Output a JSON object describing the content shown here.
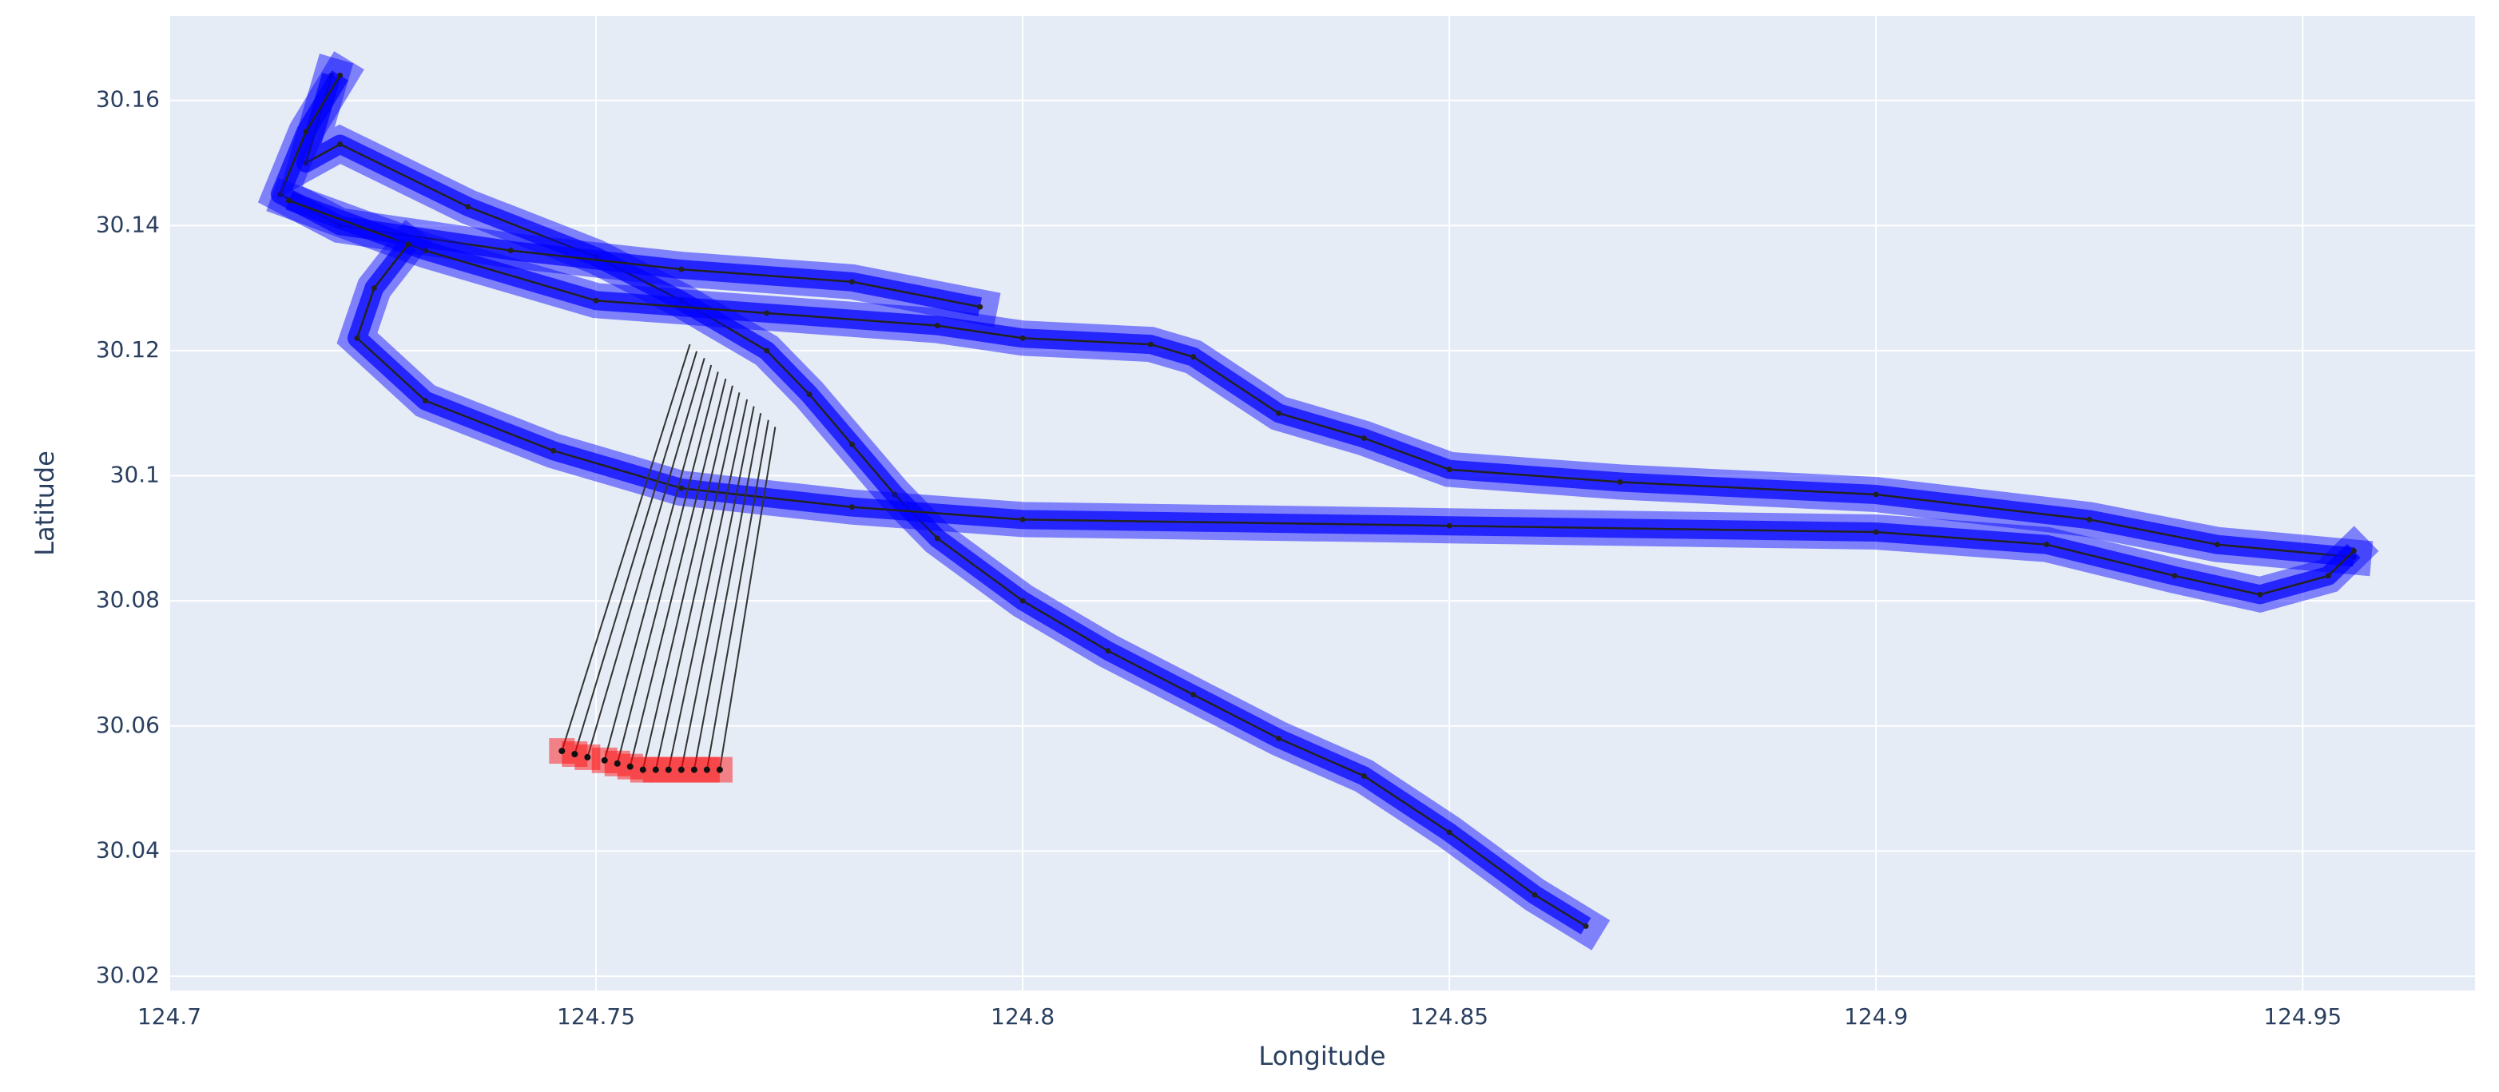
{
  "chart_data": {
    "type": "track",
    "xlabel": "Longitude",
    "ylabel": "Latitude",
    "xlim": [
      124.7,
      124.9702
    ],
    "ylim": [
      30.0177,
      30.1735
    ],
    "xticks": [
      124.7,
      124.75,
      124.8,
      124.85,
      124.9,
      124.95
    ],
    "yticks": [
      30.02,
      30.04,
      30.06,
      30.08,
      30.1,
      30.12,
      30.14,
      30.16
    ],
    "grid": true,
    "series": [
      {
        "kind": "track",
        "color": "#222222",
        "band_color": "#0000ff",
        "x": [
          124.719,
          124.716,
          124.72,
          124.735,
          124.75,
          124.76,
          124.77,
          124.775,
          124.78,
          124.785,
          124.79,
          124.8,
          124.81,
          124.82,
          124.83,
          124.84,
          124.85,
          124.86,
          124.866
        ],
        "y": [
          30.164,
          30.15,
          30.153,
          30.143,
          30.135,
          30.128,
          30.12,
          30.113,
          30.105,
          30.097,
          30.09,
          30.08,
          30.072,
          30.065,
          30.058,
          30.052,
          30.043,
          30.033,
          30.028
        ]
      },
      {
        "kind": "track",
        "color": "#222222",
        "band_color": "#0000ff",
        "x": [
          124.72,
          124.716,
          124.713,
          124.72,
          124.74,
          124.76,
          124.78,
          124.795
        ],
        "y": [
          30.164,
          30.155,
          30.145,
          30.14,
          30.136,
          30.133,
          30.131,
          30.127
        ]
      },
      {
        "kind": "track",
        "color": "#222222",
        "band_color": "#0000ff",
        "x": [
          124.714,
          124.73,
          124.75,
          124.77,
          124.79,
          124.8,
          124.815,
          124.82,
          124.83,
          124.84,
          124.85,
          124.87,
          124.9,
          124.925,
          124.94,
          124.956
        ],
        "y": [
          30.144,
          30.136,
          30.128,
          30.126,
          30.124,
          30.122,
          30.121,
          30.119,
          30.11,
          30.106,
          30.101,
          30.099,
          30.097,
          30.093,
          30.089,
          30.087
        ]
      },
      {
        "kind": "track",
        "color": "#222222",
        "band_color": "#0000ff",
        "x": [
          124.956,
          124.953,
          124.945,
          124.935,
          124.92,
          124.9,
          124.85,
          124.8,
          124.78,
          124.76,
          124.745,
          124.73,
          124.722,
          124.724,
          124.728
        ],
        "y": [
          30.088,
          30.084,
          30.081,
          30.084,
          30.089,
          30.091,
          30.092,
          30.093,
          30.095,
          30.098,
          30.104,
          30.112,
          30.122,
          30.13,
          30.137
        ]
      },
      {
        "kind": "cells",
        "color": "#ff0000",
        "link_color": "#333333",
        "x": [
          124.746,
          124.7475,
          124.749,
          124.751,
          124.7525,
          124.754,
          124.7555,
          124.757,
          124.7585,
          124.76,
          124.7615,
          124.763,
          124.7645
        ],
        "y": [
          30.056,
          30.0555,
          30.055,
          30.0545,
          30.054,
          30.0535,
          30.053,
          30.053,
          30.053,
          30.053,
          30.053,
          30.053,
          30.053
        ],
        "link_x": [
          124.761,
          124.7618,
          124.7627,
          124.7635,
          124.7643,
          124.7652,
          124.766,
          124.7668,
          124.7677,
          124.7685,
          124.7693,
          124.7702,
          124.771
        ],
        "link_y": [
          30.121,
          30.1199,
          30.1188,
          30.1177,
          30.1166,
          30.1155,
          30.1144,
          30.1133,
          30.1122,
          30.1111,
          30.11,
          30.1089,
          30.1078
        ]
      }
    ]
  }
}
